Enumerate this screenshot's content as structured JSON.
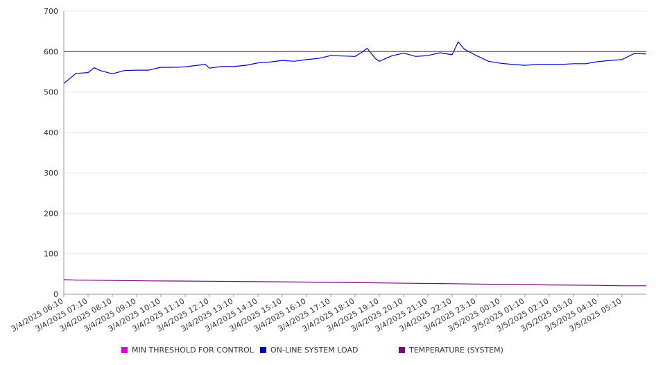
{
  "chart_data": {
    "type": "line",
    "title": "",
    "xlabel": "",
    "ylabel": "",
    "ylim": [
      0,
      700
    ],
    "yticks": [
      0,
      100,
      200,
      300,
      400,
      500,
      600,
      700
    ],
    "grid": true,
    "legend_position": "bottom",
    "x_start": "3/4/2025 06:10",
    "x_end": "3/5/2025 06:10",
    "x_tick_labels": [
      "3/4/2025 06:10",
      "3/4/2025 07:10",
      "3/4/2025 08:10",
      "3/4/2025 09:10",
      "3/4/2025 10:10",
      "3/4/2025 11:10",
      "3/4/2025 12:10",
      "3/4/2025 13:10",
      "3/4/2025 14:10",
      "3/4/2025 15:10",
      "3/4/2025 16:10",
      "3/4/2025 17:10",
      "3/4/2025 18:10",
      "3/4/2025 19:10",
      "3/4/2025 20:10",
      "3/4/2025 21:10",
      "3/4/2025 22:10",
      "3/4/2025 23:10",
      "3/5/2025 00:10",
      "3/5/2025 01:10",
      "3/5/2025 02:10",
      "3/5/2025 03:10",
      "3/5/2025 04:10",
      "3/5/2025 05:10"
    ],
    "series": [
      {
        "name": "MIN THRESHOLD FOR CONTROL",
        "color": "#e000e0",
        "x": [
          "3/4/2025 06:10",
          "3/5/2025 06:10"
        ],
        "values": [
          600,
          600
        ]
      },
      {
        "name": "ON-LINE SYSTEM LOAD",
        "color": "#0000cc",
        "x": [
          "3/4/2025 06:10",
          "3/4/2025 06:40",
          "3/4/2025 07:10",
          "3/4/2025 07:25",
          "3/4/2025 07:40",
          "3/4/2025 08:10",
          "3/4/2025 08:40",
          "3/4/2025 09:10",
          "3/4/2025 09:40",
          "3/4/2025 10:10",
          "3/4/2025 10:40",
          "3/4/2025 11:10",
          "3/4/2025 11:40",
          "3/4/2025 12:00",
          "3/4/2025 12:10",
          "3/4/2025 12:40",
          "3/4/2025 13:10",
          "3/4/2025 13:40",
          "3/4/2025 14:10",
          "3/4/2025 14:40",
          "3/4/2025 15:10",
          "3/4/2025 15:40",
          "3/4/2025 16:10",
          "3/4/2025 16:40",
          "3/4/2025 17:10",
          "3/4/2025 17:40",
          "3/4/2025 18:10",
          "3/4/2025 18:25",
          "3/4/2025 18:40",
          "3/4/2025 19:00",
          "3/4/2025 19:10",
          "3/4/2025 19:40",
          "3/4/2025 20:10",
          "3/4/2025 20:40",
          "3/4/2025 21:10",
          "3/4/2025 21:40",
          "3/4/2025 22:10",
          "3/4/2025 22:25",
          "3/4/2025 22:40",
          "3/4/2025 23:10",
          "3/4/2025 23:40",
          "3/5/2025 00:10",
          "3/5/2025 00:40",
          "3/5/2025 01:10",
          "3/5/2025 01:40",
          "3/5/2025 02:10",
          "3/5/2025 02:40",
          "3/5/2025 03:10",
          "3/5/2025 03:40",
          "3/5/2025 04:10",
          "3/5/2025 04:40",
          "3/5/2025 05:10",
          "3/5/2025 05:40",
          "3/5/2025 06:10"
        ],
        "values": [
          521,
          546,
          548,
          560,
          553,
          545,
          553,
          554,
          554,
          561,
          561,
          562,
          566,
          568,
          559,
          563,
          563,
          566,
          572,
          574,
          578,
          576,
          580,
          583,
          590,
          589,
          588,
          597,
          608,
          583,
          576,
          589,
          596,
          588,
          590,
          597,
          592,
          624,
          606,
          590,
          576,
          571,
          568,
          566,
          568,
          568,
          568,
          570,
          570,
          575,
          578,
          580,
          595,
          594
        ]
      },
      {
        "name": "TEMPERATURE (SYSTEM)",
        "color": "#800080",
        "x": [
          "3/4/2025 06:10",
          "3/4/2025 06:40",
          "3/4/2025 08:10",
          "3/4/2025 09:50",
          "3/4/2025 12:10",
          "3/4/2025 14:10",
          "3/4/2025 16:10",
          "3/4/2025 17:40",
          "3/4/2025 19:10",
          "3/4/2025 20:40",
          "3/4/2025 22:10",
          "3/4/2025 23:10",
          "3/5/2025 00:40",
          "3/5/2025 02:10",
          "3/5/2025 04:10",
          "3/5/2025 05:10",
          "3/5/2025 06:10"
        ],
        "values": [
          36,
          35,
          34,
          33,
          32,
          31,
          30,
          29,
          28,
          27,
          26,
          25,
          24,
          23,
          22,
          21,
          21
        ]
      }
    ]
  }
}
